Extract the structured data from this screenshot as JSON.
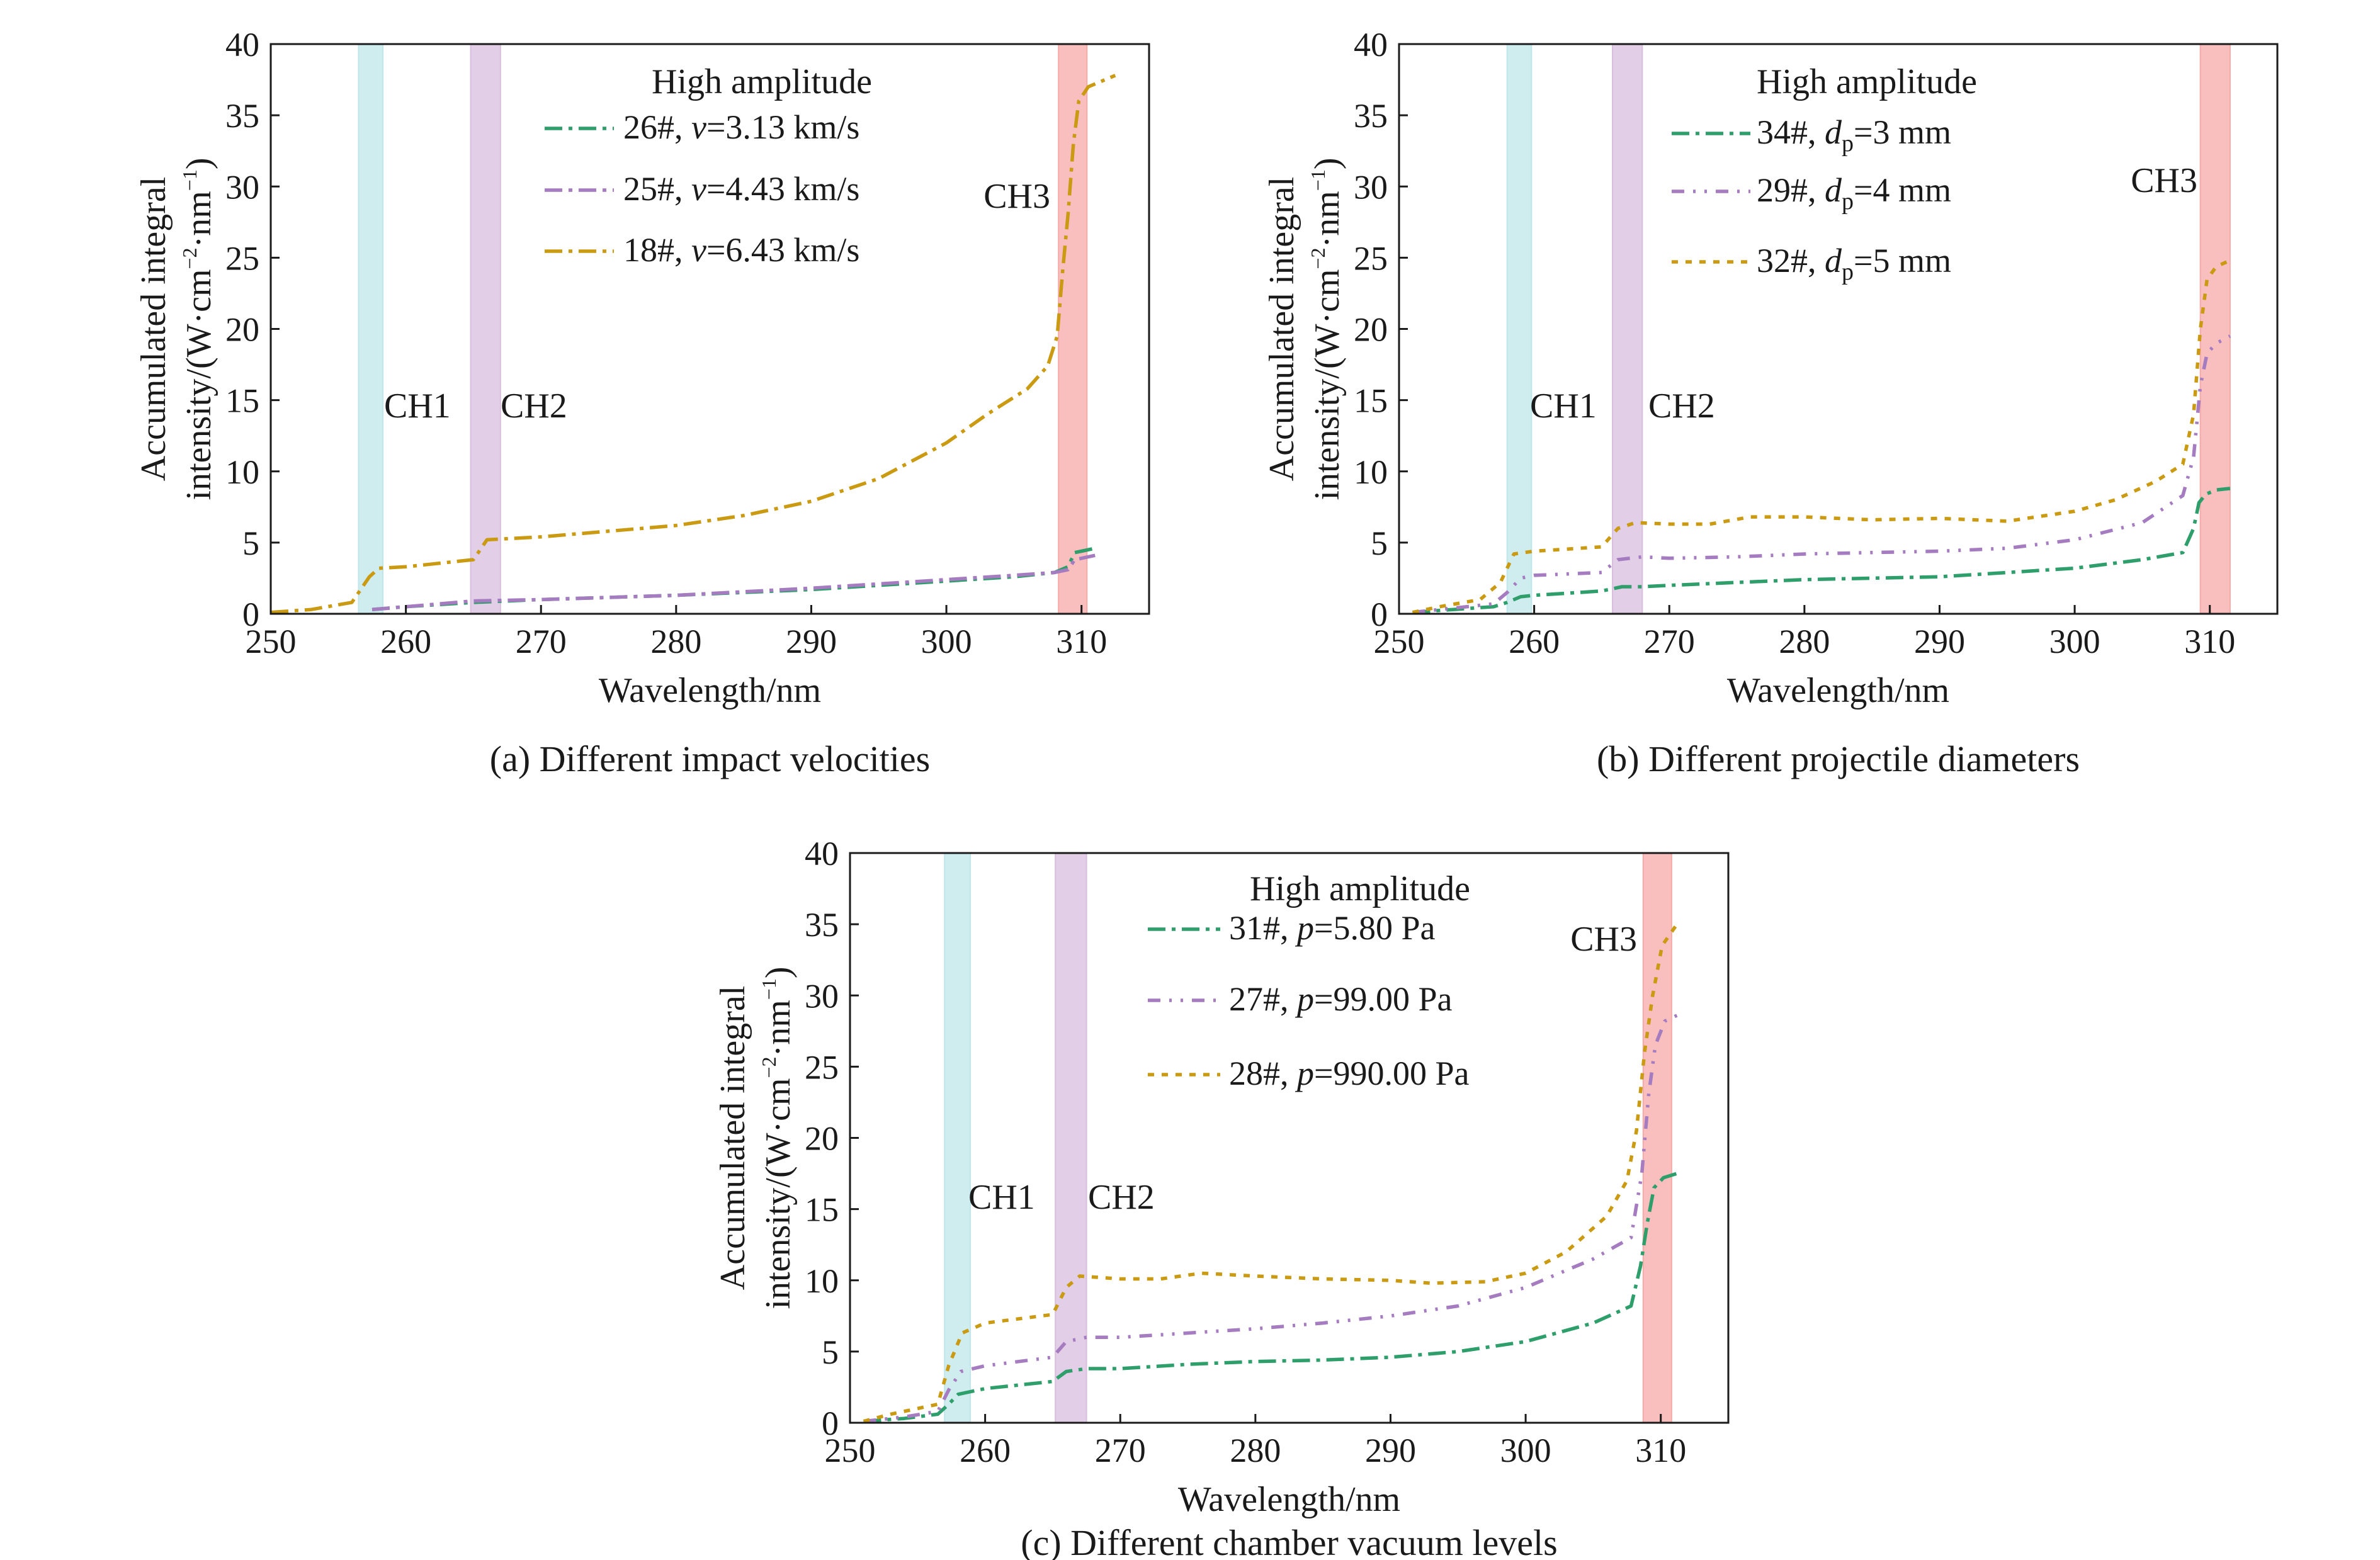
{
  "chart_data": [
    {
      "type": "line",
      "caption": "(a) Different impact velocities",
      "xlabel": "Wavelength/nm",
      "ylabel_line1": "Accumulated integral",
      "ylabel_line2_pre": "intensity/(W·cm",
      "ylabel_line2_mid": "·nm",
      "ylabel_sup1": "−2",
      "ylabel_sup2": "−1",
      "ylabel_close": ")",
      "xlim": [
        250,
        315
      ],
      "ylim": [
        0,
        40
      ],
      "xticks": [
        250,
        260,
        270,
        280,
        290,
        300,
        310
      ],
      "yticks": [
        0,
        5,
        10,
        15,
        20,
        25,
        30,
        35,
        40
      ],
      "bands": [
        {
          "label": "CH1",
          "x0": 256.5,
          "x1": 258.3,
          "color": "#bfe6ea"
        },
        {
          "label": "CH2",
          "x0": 264.8,
          "x1": 267.0,
          "color": "#d8bedd"
        },
        {
          "label": "CH3",
          "x0": 308.3,
          "x1": 310.4,
          "color": "#f5aaa8"
        }
      ],
      "legend_title": "High amplitude",
      "series": [
        {
          "name_pre": "26#, ",
          "name_var": "v",
          "name_sub": "",
          "name_post": "=3.13 km/s",
          "color": "#2e9e6b",
          "dash": "28,10,6,10",
          "x": [
            257.5,
            260,
            265,
            270,
            280,
            290,
            300,
            305,
            308,
            309,
            309.5,
            310,
            311
          ],
          "y": [
            0.3,
            0.5,
            0.8,
            1.0,
            1.3,
            1.7,
            2.3,
            2.6,
            2.9,
            3.3,
            4.3,
            4.4,
            4.6
          ]
        },
        {
          "name_pre": "25#, ",
          "name_var": "v",
          "name_sub": "",
          "name_post": "=4.43 km/s",
          "color": "#a57cc0",
          "dash": "28,10,6,10",
          "x": [
            257.5,
            260,
            265,
            270,
            280,
            290,
            300,
            305,
            308,
            309,
            309.5,
            310,
            311
          ],
          "y": [
            0.3,
            0.5,
            0.9,
            1.0,
            1.3,
            1.8,
            2.4,
            2.7,
            2.9,
            3.1,
            3.8,
            3.9,
            4.1
          ]
        },
        {
          "name_pre": "18#, ",
          "name_var": "v",
          "name_sub": "",
          "name_post": "=6.43 km/s",
          "color": "#c99a12",
          "dash": "28,10,6,10",
          "x": [
            250,
            253,
            256,
            257.3,
            258,
            260,
            262,
            265,
            266,
            270,
            275,
            280,
            285,
            290,
            295,
            300,
            303,
            306,
            307.5,
            308.2,
            308.6,
            309,
            309.4,
            309.8,
            310.5,
            312.5
          ],
          "y": [
            0.1,
            0.3,
            0.8,
            2.6,
            3.2,
            3.3,
            3.5,
            3.8,
            5.2,
            5.4,
            5.8,
            6.2,
            6.9,
            7.9,
            9.5,
            12.0,
            14.0,
            15.8,
            17.4,
            19.5,
            24.0,
            28.0,
            33.0,
            36.0,
            37.0,
            37.8
          ]
        }
      ]
    },
    {
      "type": "line",
      "caption": "(b) Different projectile diameters",
      "xlabel": "Wavelength/nm",
      "ylabel_line1": "Accumulated integral",
      "ylabel_line2_pre": "intensity/(W·cm",
      "ylabel_line2_mid": "·nm",
      "ylabel_sup1": "−2",
      "ylabel_sup2": "−1",
      "ylabel_close": ")",
      "xlim": [
        250,
        315
      ],
      "ylim": [
        0,
        40
      ],
      "xticks": [
        250,
        260,
        270,
        280,
        290,
        300,
        310
      ],
      "yticks": [
        0,
        5,
        10,
        15,
        20,
        25,
        30,
        35,
        40
      ],
      "bands": [
        {
          "label": "CH1",
          "x0": 258.0,
          "x1": 259.8,
          "color": "#bfe6ea"
        },
        {
          "label": "CH2",
          "x0": 265.8,
          "x1": 268.0,
          "color": "#d8bedd"
        },
        {
          "label": "CH3",
          "x0": 309.3,
          "x1": 311.5,
          "color": "#f5aaa8"
        }
      ],
      "legend_title": "High amplitude",
      "series": [
        {
          "name_pre": "34#, ",
          "name_var": "d",
          "name_sub": "p",
          "name_post": "=3 mm",
          "color": "#2e9e6b",
          "dash": "28,10,6,10",
          "x": [
            251,
            254,
            257,
            258,
            259,
            260,
            265,
            266.5,
            268,
            270,
            275,
            280,
            285,
            290,
            295,
            300,
            305,
            308,
            308.8,
            309.2,
            309.7,
            310.5,
            311.5
          ],
          "y": [
            0.1,
            0.3,
            0.5,
            0.8,
            1.2,
            1.3,
            1.6,
            1.9,
            1.9,
            2.0,
            2.2,
            2.4,
            2.5,
            2.6,
            2.9,
            3.2,
            3.8,
            4.3,
            6.0,
            7.8,
            8.4,
            8.7,
            8.8
          ]
        },
        {
          "name_pre": "29#, ",
          "name_var": "d",
          "name_sub": "p",
          "name_post": "=4 mm",
          "color": "#a57cc0",
          "dash": "20,14,4,14,4,14",
          "x": [
            251,
            254,
            257,
            258,
            259,
            260,
            265,
            266.2,
            268,
            270,
            275,
            280,
            285,
            290,
            295,
            300,
            305,
            308,
            308.8,
            309.3,
            309.8,
            310.5,
            311.5
          ],
          "y": [
            0.1,
            0.4,
            0.7,
            1.5,
            2.5,
            2.7,
            2.9,
            3.8,
            4.0,
            3.9,
            4.0,
            4.2,
            4.3,
            4.4,
            4.6,
            5.2,
            6.4,
            8.3,
            11.0,
            16.0,
            18.3,
            19.0,
            19.5
          ]
        },
        {
          "name_pre": "32#, ",
          "name_var": "d",
          "name_sub": "p",
          "name_post": "=5 mm",
          "color": "#c99a12",
          "dash": "10,12",
          "x": [
            251,
            253,
            256,
            257.5,
            258.5,
            260,
            265,
            266.2,
            267.5,
            270,
            273,
            276,
            280,
            285,
            290,
            295,
            300,
            303,
            306,
            308,
            308.8,
            309.3,
            309.8,
            310.5,
            311.5
          ],
          "y": [
            0.1,
            0.5,
            1.0,
            2.2,
            4.2,
            4.4,
            4.7,
            6.0,
            6.4,
            6.3,
            6.3,
            6.8,
            6.8,
            6.6,
            6.7,
            6.5,
            7.2,
            8.0,
            9.3,
            10.5,
            14.0,
            20.0,
            23.5,
            24.4,
            24.8
          ]
        }
      ]
    },
    {
      "type": "line",
      "caption": "(c) Different chamber vacuum levels",
      "xlabel": "Wavelength/nm",
      "ylabel_line1": "Accumulated integral",
      "ylabel_line2_pre": "intensity/(W·cm",
      "ylabel_line2_mid": "·nm",
      "ylabel_sup1": "−2",
      "ylabel_sup2": "−1",
      "ylabel_close": ")",
      "xlim": [
        250,
        315
      ],
      "ylim": [
        0,
        40
      ],
      "xticks": [
        250,
        260,
        270,
        280,
        290,
        300,
        310
      ],
      "yticks": [
        0,
        5,
        10,
        15,
        20,
        25,
        30,
        35,
        40
      ],
      "bands": [
        {
          "label": "CH1",
          "x0": 257.0,
          "x1": 258.9,
          "color": "#bfe6ea"
        },
        {
          "label": "CH2",
          "x0": 265.2,
          "x1": 267.5,
          "color": "#d8bedd"
        },
        {
          "label": "CH3",
          "x0": 308.7,
          "x1": 310.8,
          "color": "#f5aaa8"
        }
      ],
      "legend_title": "High amplitude",
      "series": [
        {
          "name_pre": "31#, ",
          "name_var": "p",
          "name_sub": "",
          "name_post": "=5.80 Pa",
          "color": "#2e9e6b",
          "dash": "28,10,6,10",
          "x": [
            251,
            254,
            256.5,
            257.3,
            258,
            260,
            265,
            266,
            267.5,
            270,
            275,
            280,
            285,
            290,
            295,
            300,
            305,
            307.8,
            308.5,
            309,
            309.5,
            310.2,
            311.2
          ],
          "y": [
            0.1,
            0.3,
            0.6,
            1.3,
            2.0,
            2.4,
            2.9,
            3.6,
            3.8,
            3.8,
            4.1,
            4.3,
            4.4,
            4.6,
            5.0,
            5.7,
            7.0,
            8.2,
            11.0,
            14.0,
            16.5,
            17.2,
            17.5
          ]
        },
        {
          "name_pre": "27#, ",
          "name_var": "p",
          "name_sub": "",
          "name_post": "=99.00 Pa",
          "color": "#a57cc0",
          "dash": "20,14,4,14,4,14",
          "x": [
            251,
            254,
            256.5,
            257.3,
            258.2,
            260,
            265,
            266,
            267.5,
            270,
            275,
            280,
            285,
            290,
            295,
            300,
            305,
            307.8,
            308.6,
            309.1,
            309.6,
            310.3,
            311.2
          ],
          "y": [
            0.1,
            0.4,
            0.8,
            2.3,
            3.6,
            4.0,
            4.6,
            5.7,
            6.0,
            6.0,
            6.3,
            6.6,
            7.0,
            7.5,
            8.2,
            9.5,
            11.5,
            13.0,
            17.5,
            23.0,
            26.5,
            28.2,
            28.6
          ]
        },
        {
          "name_pre": "28#, ",
          "name_var": "p",
          "name_sub": "",
          "name_post": "=990.00 Pa",
          "color": "#c99a12",
          "dash": "10,12",
          "x": [
            251,
            253,
            256.5,
            257.3,
            258.3,
            260,
            265,
            266,
            267,
            270,
            273,
            276,
            280,
            285,
            290,
            293,
            297,
            300,
            303,
            306,
            307.5,
            308.2,
            308.8,
            309.4,
            310.1,
            311.2
          ],
          "y": [
            0.1,
            0.6,
            1.3,
            4.0,
            6.3,
            7.0,
            7.6,
            9.5,
            10.3,
            10.1,
            10.1,
            10.5,
            10.3,
            10.1,
            10.0,
            9.8,
            9.9,
            10.5,
            12.0,
            14.5,
            17.0,
            20.5,
            26.0,
            30.0,
            33.5,
            35.0
          ]
        }
      ]
    }
  ]
}
